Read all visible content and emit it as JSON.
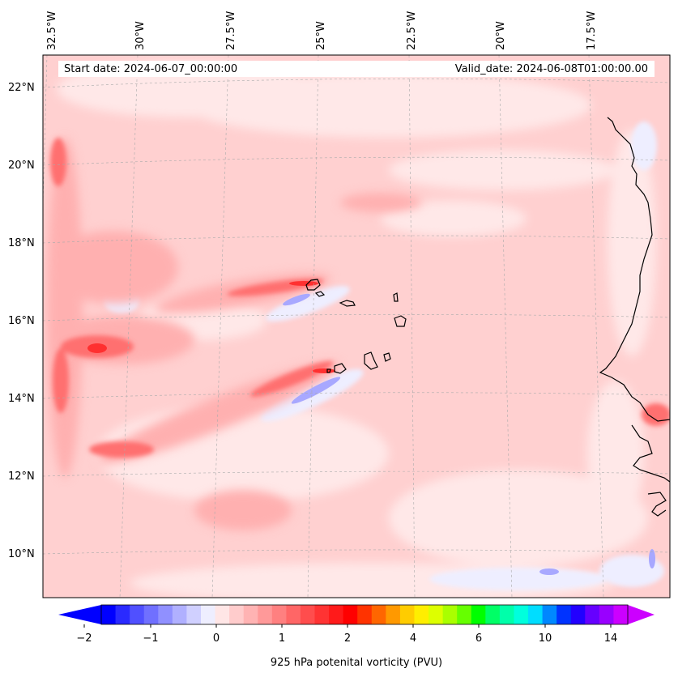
{
  "map": {
    "start_date": "Start date: 2024-06-07_00:00:00",
    "valid_date": "Valid_date: 2024-06-08T01:00:00.00",
    "lon_labels": [
      "32.5°W",
      "30°W",
      "27.5°W",
      "25°W",
      "22.5°W",
      "20°W",
      "17.5°W"
    ],
    "lat_labels": [
      "22°N",
      "20°N",
      "18°N",
      "16°N",
      "14°N",
      "12°N",
      "10°N"
    ],
    "gridlines": true
  },
  "colorbar": {
    "ticks": [
      "−2",
      "−1",
      "0",
      "1",
      "2",
      "4",
      "6",
      "10",
      "14"
    ],
    "label": "925 hPa potenital vorticity (PVU)",
    "colors": [
      "#0000ff",
      "#2a2aff",
      "#5050ff",
      "#7070ff",
      "#9090ff",
      "#b0b0ff",
      "#d0d0ff",
      "#eeeeff",
      "#ffe6e6",
      "#ffcccc",
      "#ffb3b3",
      "#ff9999",
      "#ff8080",
      "#ff6666",
      "#ff4d4d",
      "#ff3333",
      "#ff1a1a",
      "#ff0000",
      "#ff3300",
      "#ff6600",
      "#ff9900",
      "#ffcc00",
      "#ffee00",
      "#ddff00",
      "#aaff00",
      "#66ff00",
      "#00ff00",
      "#00ff66",
      "#00ffaa",
      "#00ffdd",
      "#00ddff",
      "#0088ff",
      "#0033ff",
      "#2200ff",
      "#6600ff",
      "#9900ff",
      "#cc00ff"
    ],
    "underflow_color": "#0000ff",
    "overflow_color": "#cc00ff"
  }
}
